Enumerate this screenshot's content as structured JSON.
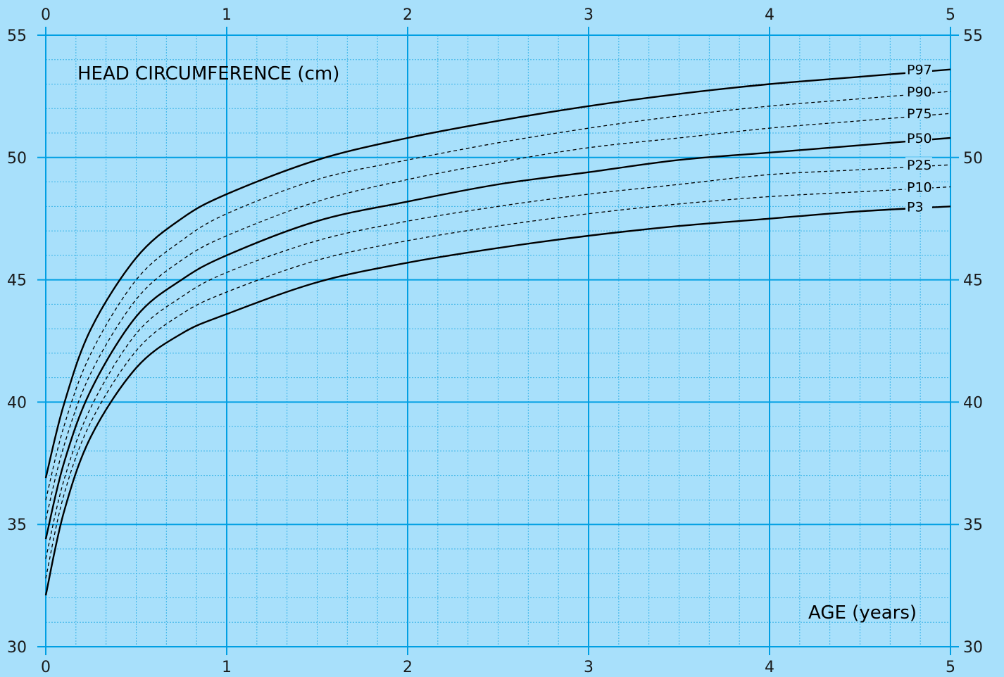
{
  "colors": {
    "frame_bg": "#a8e0fb",
    "plot_bg": "#a8e0fb",
    "major_grid": "#009fe3",
    "minor_grid": "#3bb4e8",
    "curve": "#000000"
  },
  "chart_data": {
    "type": "line",
    "title": "HEAD CIRCUMFERENCE (cm)",
    "xlabel": "AGE (years)",
    "ylabel": "",
    "xlim": [
      0,
      5
    ],
    "ylim": [
      30,
      55
    ],
    "x_ticks": [
      0,
      1,
      2,
      3,
      4,
      5
    ],
    "y_ticks": [
      30,
      35,
      40,
      45,
      50,
      55
    ],
    "grid": true,
    "legend": "labels at right end of curves",
    "x": [
      0,
      0.1,
      0.25,
      0.5,
      0.75,
      1,
      1.5,
      2,
      2.5,
      3,
      3.5,
      4,
      4.5,
      5
    ],
    "series": [
      {
        "name": "P97",
        "style": "solid",
        "values": [
          36.9,
          39.9,
          43.0,
          45.9,
          47.5,
          48.5,
          49.9,
          50.8,
          51.5,
          52.1,
          52.6,
          53.0,
          53.3,
          53.6
        ]
      },
      {
        "name": "P90",
        "style": "dashed",
        "values": [
          36.0,
          39.0,
          42.0,
          45.0,
          46.6,
          47.7,
          49.1,
          49.9,
          50.6,
          51.2,
          51.7,
          52.1,
          52.4,
          52.7
        ]
      },
      {
        "name": "P75",
        "style": "dashed",
        "values": [
          35.2,
          38.2,
          41.2,
          44.2,
          45.8,
          46.8,
          48.2,
          49.1,
          49.8,
          50.4,
          50.8,
          51.2,
          51.5,
          51.8
        ]
      },
      {
        "name": "P50",
        "style": "solid",
        "values": [
          34.4,
          37.5,
          40.5,
          43.5,
          45.0,
          46.0,
          47.4,
          48.2,
          48.9,
          49.4,
          49.9,
          50.2,
          50.5,
          50.8
        ]
      },
      {
        "name": "P25",
        "style": "dashed",
        "values": [
          33.6,
          36.8,
          39.8,
          42.8,
          44.3,
          45.3,
          46.6,
          47.4,
          48.0,
          48.5,
          48.9,
          49.3,
          49.5,
          49.7
        ]
      },
      {
        "name": "P10",
        "style": "dashed",
        "values": [
          32.8,
          36.2,
          39.2,
          42.1,
          43.6,
          44.5,
          45.8,
          46.6,
          47.2,
          47.7,
          48.1,
          48.4,
          48.6,
          48.8
        ]
      },
      {
        "name": "P3",
        "style": "solid",
        "values": [
          32.1,
          35.5,
          38.6,
          41.4,
          42.8,
          43.6,
          44.9,
          45.7,
          46.3,
          46.8,
          47.2,
          47.5,
          47.8,
          48.0
        ]
      }
    ]
  }
}
